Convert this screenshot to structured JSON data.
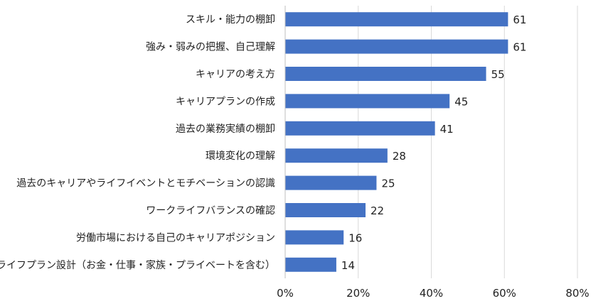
{
  "chart_data": {
    "type": "bar",
    "orientation": "horizontal",
    "title": "",
    "xlabel": "",
    "ylabel": "",
    "categories": [
      "スキル・能力の棚卸",
      "強み・弱みの把握、自己理解",
      "キャリアの考え方",
      "キャリアプランの作成",
      "過去の業務実績の棚卸",
      "環境変化の理解",
      "過去のキャリアやライフイベントとモチベーションの認識",
      "ワークライフバランスの確認",
      "労働市場における自己のキャリアポジション",
      "ライフプラン設計（お金・仕事・家族・プライベートを含む）"
    ],
    "values": [
      61,
      61,
      55,
      45,
      41,
      28,
      25,
      22,
      16,
      14
    ],
    "xlim": [
      0,
      80
    ],
    "xticks": [
      "0%",
      "20%",
      "40%",
      "60%",
      "80%"
    ],
    "grid": "vertical",
    "legend": "none",
    "bar_color": "#4472C4",
    "grid_color": "#D9D9D9"
  }
}
